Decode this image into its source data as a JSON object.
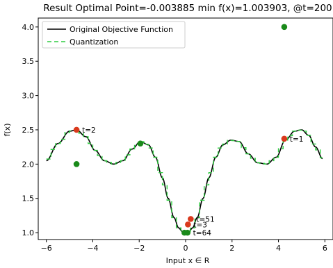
{
  "chart_data": {
    "type": "line",
    "title": "Result Optimal Point=-0.003885 min f(x)=1.003903, @t=200",
    "xlabel": "Input x ∈ R",
    "ylabel": "f(x)",
    "xlim": [
      -6.35,
      6.35
    ],
    "ylim": [
      0.9,
      4.13
    ],
    "x_ticks": [
      -6,
      -4,
      -2,
      0,
      2,
      4,
      6
    ],
    "x_tick_labels": [
      "−6",
      "−4",
      "−2",
      "0",
      "2",
      "4",
      "6"
    ],
    "y_ticks": [
      1.0,
      1.5,
      2.0,
      2.5,
      3.0,
      3.5,
      4.0
    ],
    "y_tick_labels": [
      "1.0",
      "1.5",
      "2.0",
      "2.5",
      "3.0",
      "3.5",
      "4.0"
    ],
    "legend_placement": "upper-left",
    "series": [
      {
        "name": "Original Objective Function",
        "style": "solid",
        "color": "#000000"
      },
      {
        "name": "Quantization",
        "style": "dashed",
        "color": "#2ecc40"
      }
    ],
    "curve": {
      "x": [
        -6.0,
        -5.5,
        -5.0,
        -4.7,
        -4.3,
        -3.9,
        -3.5,
        -3.1,
        -2.7,
        -2.3,
        -1.95,
        -1.6,
        -1.3,
        -1.0,
        -0.75,
        -0.5,
        -0.3,
        -0.15,
        0.0,
        0.15,
        0.3,
        0.5,
        0.75,
        1.0,
        1.3,
        1.6,
        1.95,
        2.3,
        2.7,
        3.1,
        3.5,
        3.9,
        4.3,
        4.7,
        5.0,
        5.3,
        5.6,
        5.9
      ],
      "y": [
        2.05,
        2.3,
        2.48,
        2.5,
        2.4,
        2.2,
        2.05,
        2.0,
        2.05,
        2.22,
        2.33,
        2.28,
        2.1,
        1.8,
        1.5,
        1.22,
        1.07,
        1.02,
        1.0,
        1.02,
        1.07,
        1.22,
        1.5,
        1.8,
        2.1,
        2.28,
        2.35,
        2.33,
        2.15,
        2.02,
        2.0,
        2.1,
        2.35,
        2.48,
        2.5,
        2.42,
        2.25,
        2.08
      ]
    },
    "quantization_step": 0.2,
    "points": [
      {
        "x": 4.25,
        "y": 2.37,
        "color": "#d9391d",
        "label": "t=1"
      },
      {
        "x": -4.7,
        "y": 2.5,
        "color": "#d9391d",
        "label": "t=2"
      },
      {
        "x": 0.1,
        "y": 1.12,
        "color": "#d9391d",
        "label": "t=3"
      },
      {
        "x": 0.22,
        "y": 1.2,
        "color": "#d9391d",
        "label": "t=51"
      },
      {
        "x": 0.08,
        "y": 1.0,
        "color": "#1a8a1a",
        "label": "t=64"
      },
      {
        "x": -0.05,
        "y": 1.0,
        "color": "#1a8a1a",
        "label": ""
      },
      {
        "x": -4.7,
        "y": 2.0,
        "color": "#1a8a1a",
        "label": ""
      },
      {
        "x": -1.95,
        "y": 2.3,
        "color": "#1a8a1a",
        "label": ""
      },
      {
        "x": 4.25,
        "y": 4.0,
        "color": "#1a8a1a",
        "label": ""
      }
    ]
  }
}
